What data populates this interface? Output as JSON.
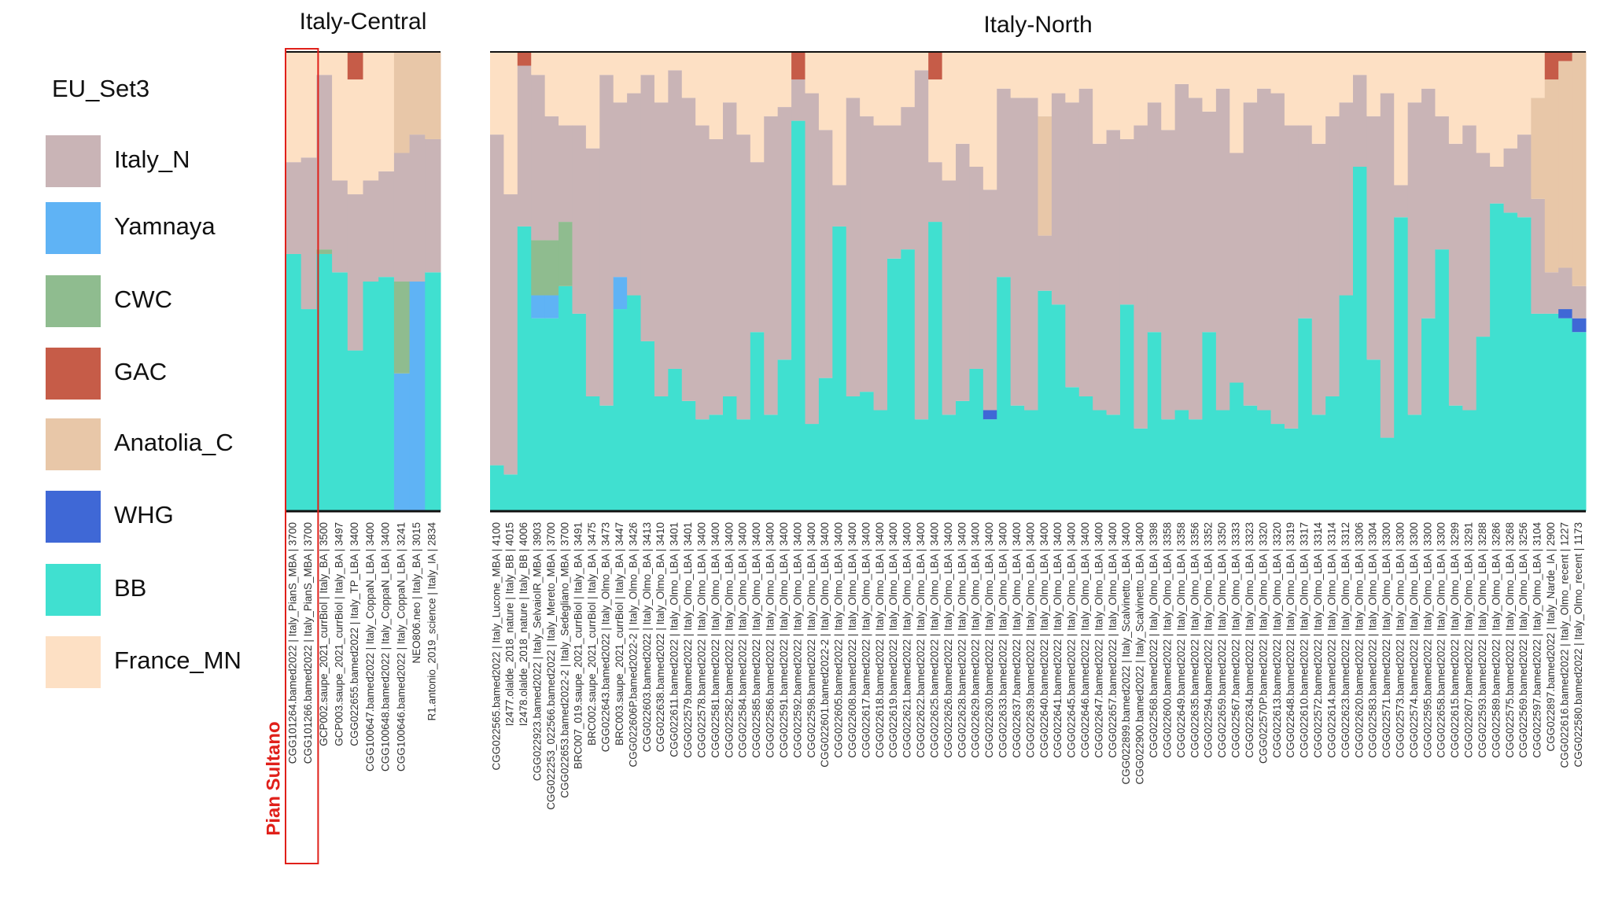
{
  "legend_title": "EU_Set3",
  "chart_data": [
    {
      "type": "bar",
      "stacked": true,
      "title": "Italy-Central",
      "ylim": [
        0,
        100
      ],
      "annotation": "Pian Sultano",
      "categories": [
        "CGG101264.bamed2022 | Italy_PianS_MBA | 3700",
        "CGG101266.bamed2022 | Italy_PianS_MBA | 3700",
        "GCP002.saupe_2021_currBiol | Italy_BA | 3500",
        "GCP003.saupe_2021_currBiol | Italy_BA | 3497",
        "CGG022655.bamed2022 | Italy_TP_LBA | 3400",
        "CGG100647.bamed2022 | Italy_CoppaN_LBA | 3400",
        "CGG100648.bamed2022 | Italy_CoppaN_LBA | 3400",
        "CGG100646.bamed2022 | Italy_CoppaN_LBA | 3241",
        "NEO806.neo | Italy_BA | 3015",
        "R1.antonio_2019_science | Italy_IA | 2834"
      ],
      "series": [
        {
          "name": "Italy_N",
          "color": "#c9b4b6",
          "values": [
            20,
            33,
            38,
            20,
            34,
            22,
            23,
            28,
            32,
            29
          ]
        },
        {
          "name": "Yamnaya",
          "color": "#5fb3f5",
          "values": [
            0,
            0,
            0,
            0,
            0,
            0,
            0,
            30,
            50,
            0
          ]
        },
        {
          "name": "CWC",
          "color": "#8fbc8f",
          "values": [
            0,
            0,
            1,
            0,
            0,
            0,
            0,
            20,
            0,
            0
          ]
        },
        {
          "name": "GAC",
          "color": "#c65c48",
          "values": [
            0,
            0,
            0,
            0,
            6,
            0,
            0,
            0,
            0,
            0
          ]
        },
        {
          "name": "Anatolia_C",
          "color": "#e8c7a8",
          "values": [
            0,
            0,
            0,
            0,
            0,
            0,
            0,
            22,
            18,
            19
          ]
        },
        {
          "name": "WHG",
          "color": "#3f68d6",
          "values": [
            0,
            0,
            0,
            0,
            0,
            0,
            0,
            0,
            0,
            0
          ]
        },
        {
          "name": "BB",
          "color": "#40e0d0",
          "values": [
            56,
            44,
            56,
            52,
            35,
            50,
            51,
            0,
            0,
            52
          ]
        },
        {
          "name": "France_MN",
          "color": "#fde0c4",
          "values": [
            24,
            23,
            5,
            28,
            25,
            28,
            26,
            0,
            0,
            0
          ]
        }
      ]
    },
    {
      "type": "bar",
      "stacked": true,
      "title": "Italy-North",
      "ylim": [
        0,
        100
      ],
      "categories": [
        "CGG022565.bamed2022 | Italy_Lucone_MBA | 4100",
        "I2477.olalde_2018_nature | Italy_BB | 4015",
        "I2478.olalde_2018_nature | Italy_BB | 4006",
        "CGG022923.bamed2022 | Italy_SelvaioIR_MBA | 3903",
        "CGG022253_022566.bamed2022 | Italy_Mereto_MBA | 3700",
        "CGG022653.bamed2022-2 | Italy_Sedegliano_MBA | 3700",
        "BRC007_019.saupe_2021_currBiol | Italy_BA | 3491",
        "BRC002.saupe_2021_currBiol | Italy_BA | 3475",
        "CGG022643.bamed2022 | Italy_Olmo_BA | 3473",
        "BRC003.saupe_2021_currBiol | Italy_BA | 3447",
        "CGG022606P.bamed2022-2 | Italy_Olmo_BA | 3426",
        "CGG022603.bamed2022 | Italy_Olmo_BA | 3413",
        "CGG022638.bamed2022 | Italy_Olmo_BA | 3410",
        "CGG022611.bamed2022 | Italy_Olmo_LBA | 3401",
        "CGG022579.bamed2022 | Italy_Olmo_LBA | 3401",
        "CGG022578.bamed2022 | Italy_Olmo_LBA | 3400",
        "CGG022581.bamed2022 | Italy_Olmo_LBA | 3400",
        "CGG022582.bamed2022 | Italy_Olmo_LBA | 3400",
        "CGG022584.bamed2022 | Italy_Olmo_LBA | 3400",
        "CGG022585.bamed2022 | Italy_Olmo_LBA | 3400",
        "CGG022586.bamed2022 | Italy_Olmo_LBA | 3400",
        "CGG022591.bamed2022 | Italy_Olmo_LBA | 3400",
        "CGG022592.bamed2022 | Italy_Olmo_LBA | 3400",
        "CGG022598.bamed2022 | Italy_Olmo_LBA | 3400",
        "CGG022601.bamed2022-2 | Italy_Olmo_LBA | 3400",
        "CGG022605.bamed2022 | Italy_Olmo_LBA | 3400",
        "CGG022608.bamed2022 | Italy_Olmo_LBA | 3400",
        "CGG022617.bamed2022 | Italy_Olmo_LBA | 3400",
        "CGG022618.bamed2022 | Italy_Olmo_LBA | 3400",
        "CGG022619.bamed2022 | Italy_Olmo_LBA | 3400",
        "CGG022621.bamed2022 | Italy_Olmo_LBA | 3400",
        "CGG022622.bamed2022 | Italy_Olmo_LBA | 3400",
        "CGG022625.bamed2022 | Italy_Olmo_LBA | 3400",
        "CGG022626.bamed2022 | Italy_Olmo_LBA | 3400",
        "CGG022628.bamed2022 | Italy_Olmo_LBA | 3400",
        "CGG022629.bamed2022 | Italy_Olmo_LBA | 3400",
        "CGG022630.bamed2022 | Italy_Olmo_LBA | 3400",
        "CGG022633.bamed2022 | Italy_Olmo_LBA | 3400",
        "CGG022637.bamed2022 | Italy_Olmo_LBA | 3400",
        "CGG022639.bamed2022 | Italy_Olmo_LBA | 3400",
        "CGG022640.bamed2022 | Italy_Olmo_LBA | 3400",
        "CGG022641.bamed2022 | Italy_Olmo_LBA | 3400",
        "CGG022645.bamed2022 | Italy_Olmo_LBA | 3400",
        "CGG022646.bamed2022 | Italy_Olmo_LBA | 3400",
        "CGG022647.bamed2022 | Italy_Olmo_LBA | 3400",
        "CGG022657.bamed2022 | Italy_Olmo_LBA | 3400",
        "CGG022899.bamed2022 | Italy_Scalvinetto_LBA | 3400",
        "CGG022900.bamed2022 | Italy_Scalvinetto_LBA | 3400",
        "CGG022568.bamed2022 | Italy_Olmo_LBA | 3398",
        "CGG022600.bamed2022 | Italy_Olmo_LBA | 3358",
        "CGG022649.bamed2022 | Italy_Olmo_LBA | 3358",
        "CGG022635.bamed2022 | Italy_Olmo_LBA | 3356",
        "CGG022594.bamed2022 | Italy_Olmo_LBA | 3352",
        "CGG022659.bamed2022 | Italy_Olmo_LBA | 3350",
        "CGG022567.bamed2022 | Italy_Olmo_LBA | 3333",
        "CGG022634.bamed2022 | Italy_Olmo_LBA | 3323",
        "CGG022570P.bamed2022 | Italy_Olmo_LBA | 3320",
        "CGG022613.bamed2022 | Italy_Olmo_LBA | 3320",
        "CGG022648.bamed2022 | Italy_Olmo_LBA | 3319",
        "CGG022610.bamed2022 | Italy_Olmo_LBA | 3317",
        "CGG022572.bamed2022 | Italy_Olmo_LBA | 3314",
        "CGG022614.bamed2022 | Italy_Olmo_LBA | 3314",
        "CGG022623.bamed2022 | Italy_Olmo_LBA | 3312",
        "CGG022620.bamed2022 | Italy_Olmo_LBA | 3306",
        "CGG022583.bamed2022 | Italy_Olmo_LBA | 3304",
        "CGG022571.bamed2022 | Italy_Olmo_LBA | 3300",
        "CGG022573.bamed2022 | Italy_Olmo_LBA | 3300",
        "CGG022574.bamed2022 | Italy_Olmo_LBA | 3300",
        "CGG022595.bamed2022 | Italy_Olmo_LBA | 3300",
        "CGG022658.bamed2022 | Italy_Olmo_LBA | 3300",
        "CGG022615.bamed2022 | Italy_Olmo_LBA | 3299",
        "CGG022607.bamed2022 | Italy_Olmo_LBA | 3291",
        "CGG022593.bamed2022 | Italy_Olmo_LBA | 3288",
        "CGG022589.bamed2022 | Italy_Olmo_LBA | 3286",
        "CGG022575.bamed2022 | Italy_Olmo_LBA | 3268",
        "CGG022569.bamed2022 | Italy_Olmo_LBA | 3256",
        "CGG022597.bamed2022 | Italy_Olmo_LBA | 3104",
        "CGG022897.bamed2022 | Italy_Narde_IA | 2900",
        "CGG022616.bamed2022 | Italy_Olmo_recent | 1227",
        "CGG022580.bamed2022 | Italy_Olmo_recent | 1173"
      ],
      "series": [
        {
          "name": "Italy_N",
          "color": "#c9b4b6",
          "values": [
            72,
            61,
            35,
            36,
            27,
            21,
            41,
            54,
            72,
            38,
            44,
            58,
            64,
            65,
            66,
            64,
            60,
            64,
            62,
            37,
            65,
            55,
            9,
            72,
            54,
            9,
            65,
            60,
            62,
            29,
            31,
            76,
            13,
            51,
            56,
            44,
            48,
            41,
            67,
            68,
            12,
            46,
            62,
            67,
            58,
            62,
            36,
            66,
            50,
            63,
            71,
            70,
            48,
            70,
            50,
            66,
            70,
            72,
            66,
            42,
            59,
            61,
            42,
            20,
            53,
            75,
            7,
            68,
            50,
            29,
            57,
            62,
            40,
            8,
            14,
            18,
            25,
            9,
            9,
            7
          ]
        },
        {
          "name": "Yamnaya",
          "color": "#5fb3f5",
          "values": [
            0,
            0,
            0,
            5,
            5,
            0,
            0,
            0,
            0,
            7,
            0,
            0,
            0,
            0,
            0,
            0,
            0,
            0,
            0,
            0,
            0,
            0,
            0,
            0,
            0,
            0,
            0,
            0,
            0,
            0,
            0,
            0,
            0,
            0,
            0,
            0,
            0,
            0,
            0,
            0,
            0,
            0,
            0,
            0,
            0,
            0,
            0,
            0,
            0,
            0,
            0,
            0,
            0,
            0,
            0,
            0,
            0,
            0,
            0,
            0,
            0,
            0,
            0,
            0,
            0,
            0,
            0,
            0,
            0,
            0,
            0,
            0,
            0,
            0,
            0,
            0,
            0,
            0,
            0,
            0
          ]
        },
        {
          "name": "CWC",
          "color": "#8fbc8f",
          "values": [
            0,
            0,
            0,
            12,
            12,
            14,
            0,
            0,
            0,
            0,
            0,
            0,
            0,
            0,
            0,
            0,
            0,
            0,
            0,
            0,
            0,
            0,
            0,
            0,
            0,
            0,
            0,
            0,
            0,
            0,
            0,
            0,
            0,
            0,
            0,
            0,
            0,
            0,
            0,
            0,
            0,
            0,
            0,
            0,
            0,
            0,
            0,
            0,
            0,
            0,
            0,
            0,
            0,
            0,
            0,
            0,
            0,
            0,
            0,
            0,
            0,
            0,
            0,
            0,
            0,
            0,
            0,
            0,
            0,
            0,
            0,
            0,
            0,
            0,
            0,
            0,
            0,
            0,
            0,
            0
          ]
        },
        {
          "name": "GAC",
          "color": "#c65c48",
          "values": [
            0,
            0,
            3,
            0,
            0,
            0,
            0,
            0,
            0,
            0,
            0,
            0,
            0,
            0,
            0,
            0,
            0,
            0,
            0,
            0,
            0,
            0,
            6,
            0,
            0,
            0,
            0,
            0,
            0,
            0,
            0,
            0,
            6,
            0,
            0,
            0,
            0,
            0,
            0,
            0,
            0,
            0,
            0,
            0,
            0,
            0,
            0,
            0,
            0,
            0,
            0,
            0,
            0,
            0,
            0,
            0,
            0,
            0,
            0,
            0,
            0,
            0,
            0,
            0,
            0,
            0,
            0,
            0,
            0,
            0,
            0,
            0,
            0,
            0,
            0,
            0,
            0,
            6,
            2,
            0
          ]
        },
        {
          "name": "Anatolia_C",
          "color": "#e8c7a8",
          "values": [
            0,
            0,
            0,
            0,
            0,
            0,
            0,
            0,
            0,
            0,
            0,
            0,
            0,
            0,
            0,
            0,
            0,
            0,
            0,
            0,
            0,
            0,
            0,
            0,
            0,
            0,
            0,
            0,
            0,
            0,
            0,
            0,
            0,
            0,
            0,
            0,
            0,
            0,
            0,
            0,
            26,
            0,
            0,
            0,
            0,
            0,
            0,
            0,
            0,
            0,
            0,
            0,
            0,
            0,
            0,
            0,
            0,
            0,
            0,
            0,
            0,
            0,
            0,
            0,
            0,
            0,
            0,
            0,
            0,
            0,
            0,
            0,
            0,
            0,
            0,
            0,
            22,
            42,
            45,
            51
          ]
        },
        {
          "name": "WHG",
          "color": "#3f68d6",
          "values": [
            0,
            0,
            0,
            0,
            0,
            0,
            0,
            0,
            0,
            0,
            0,
            0,
            0,
            0,
            0,
            0,
            0,
            0,
            0,
            0,
            0,
            0,
            0,
            0,
            0,
            0,
            0,
            0,
            0,
            0,
            0,
            0,
            0,
            0,
            0,
            0,
            2,
            0,
            0,
            0,
            0,
            0,
            0,
            0,
            0,
            0,
            0,
            0,
            0,
            0,
            0,
            0,
            0,
            0,
            0,
            0,
            0,
            0,
            0,
            0,
            0,
            0,
            0,
            0,
            0,
            0,
            0,
            0,
            0,
            0,
            0,
            0,
            0,
            0,
            0,
            0,
            0,
            0,
            2,
            3
          ]
        },
        {
          "name": "BB",
          "color": "#40e0d0",
          "values": [
            10,
            8,
            62,
            42,
            42,
            49,
            43,
            25,
            23,
            44,
            47,
            37,
            25,
            31,
            24,
            20,
            21,
            25,
            20,
            39,
            21,
            33,
            85,
            19,
            29,
            62,
            25,
            26,
            22,
            55,
            57,
            20,
            63,
            21,
            24,
            31,
            20,
            51,
            23,
            22,
            48,
            45,
            27,
            25,
            22,
            21,
            45,
            18,
            39,
            20,
            22,
            20,
            39,
            22,
            28,
            23,
            22,
            19,
            18,
            42,
            21,
            25,
            47,
            75,
            33,
            16,
            64,
            21,
            42,
            57,
            23,
            22,
            38,
            67,
            65,
            64,
            43,
            43,
            42,
            39
          ]
        },
        {
          "name": "France_MN",
          "color": "#fde0c4",
          "values": [
            18,
            31,
            0,
            5,
            14,
            16,
            16,
            21,
            5,
            11,
            9,
            5,
            11,
            4,
            10,
            16,
            19,
            11,
            18,
            24,
            14,
            12,
            0,
            9,
            17,
            29,
            10,
            14,
            16,
            16,
            12,
            4,
            18,
            28,
            20,
            25,
            30,
            8,
            10,
            10,
            14,
            9,
            11,
            8,
            20,
            17,
            19,
            16,
            11,
            17,
            7,
            10,
            13,
            8,
            22,
            11,
            8,
            9,
            16,
            16,
            20,
            14,
            11,
            5,
            14,
            9,
            29,
            11,
            8,
            14,
            20,
            16,
            22,
            25,
            21,
            18,
            10,
            0,
            0,
            0
          ]
        }
      ]
    }
  ]
}
